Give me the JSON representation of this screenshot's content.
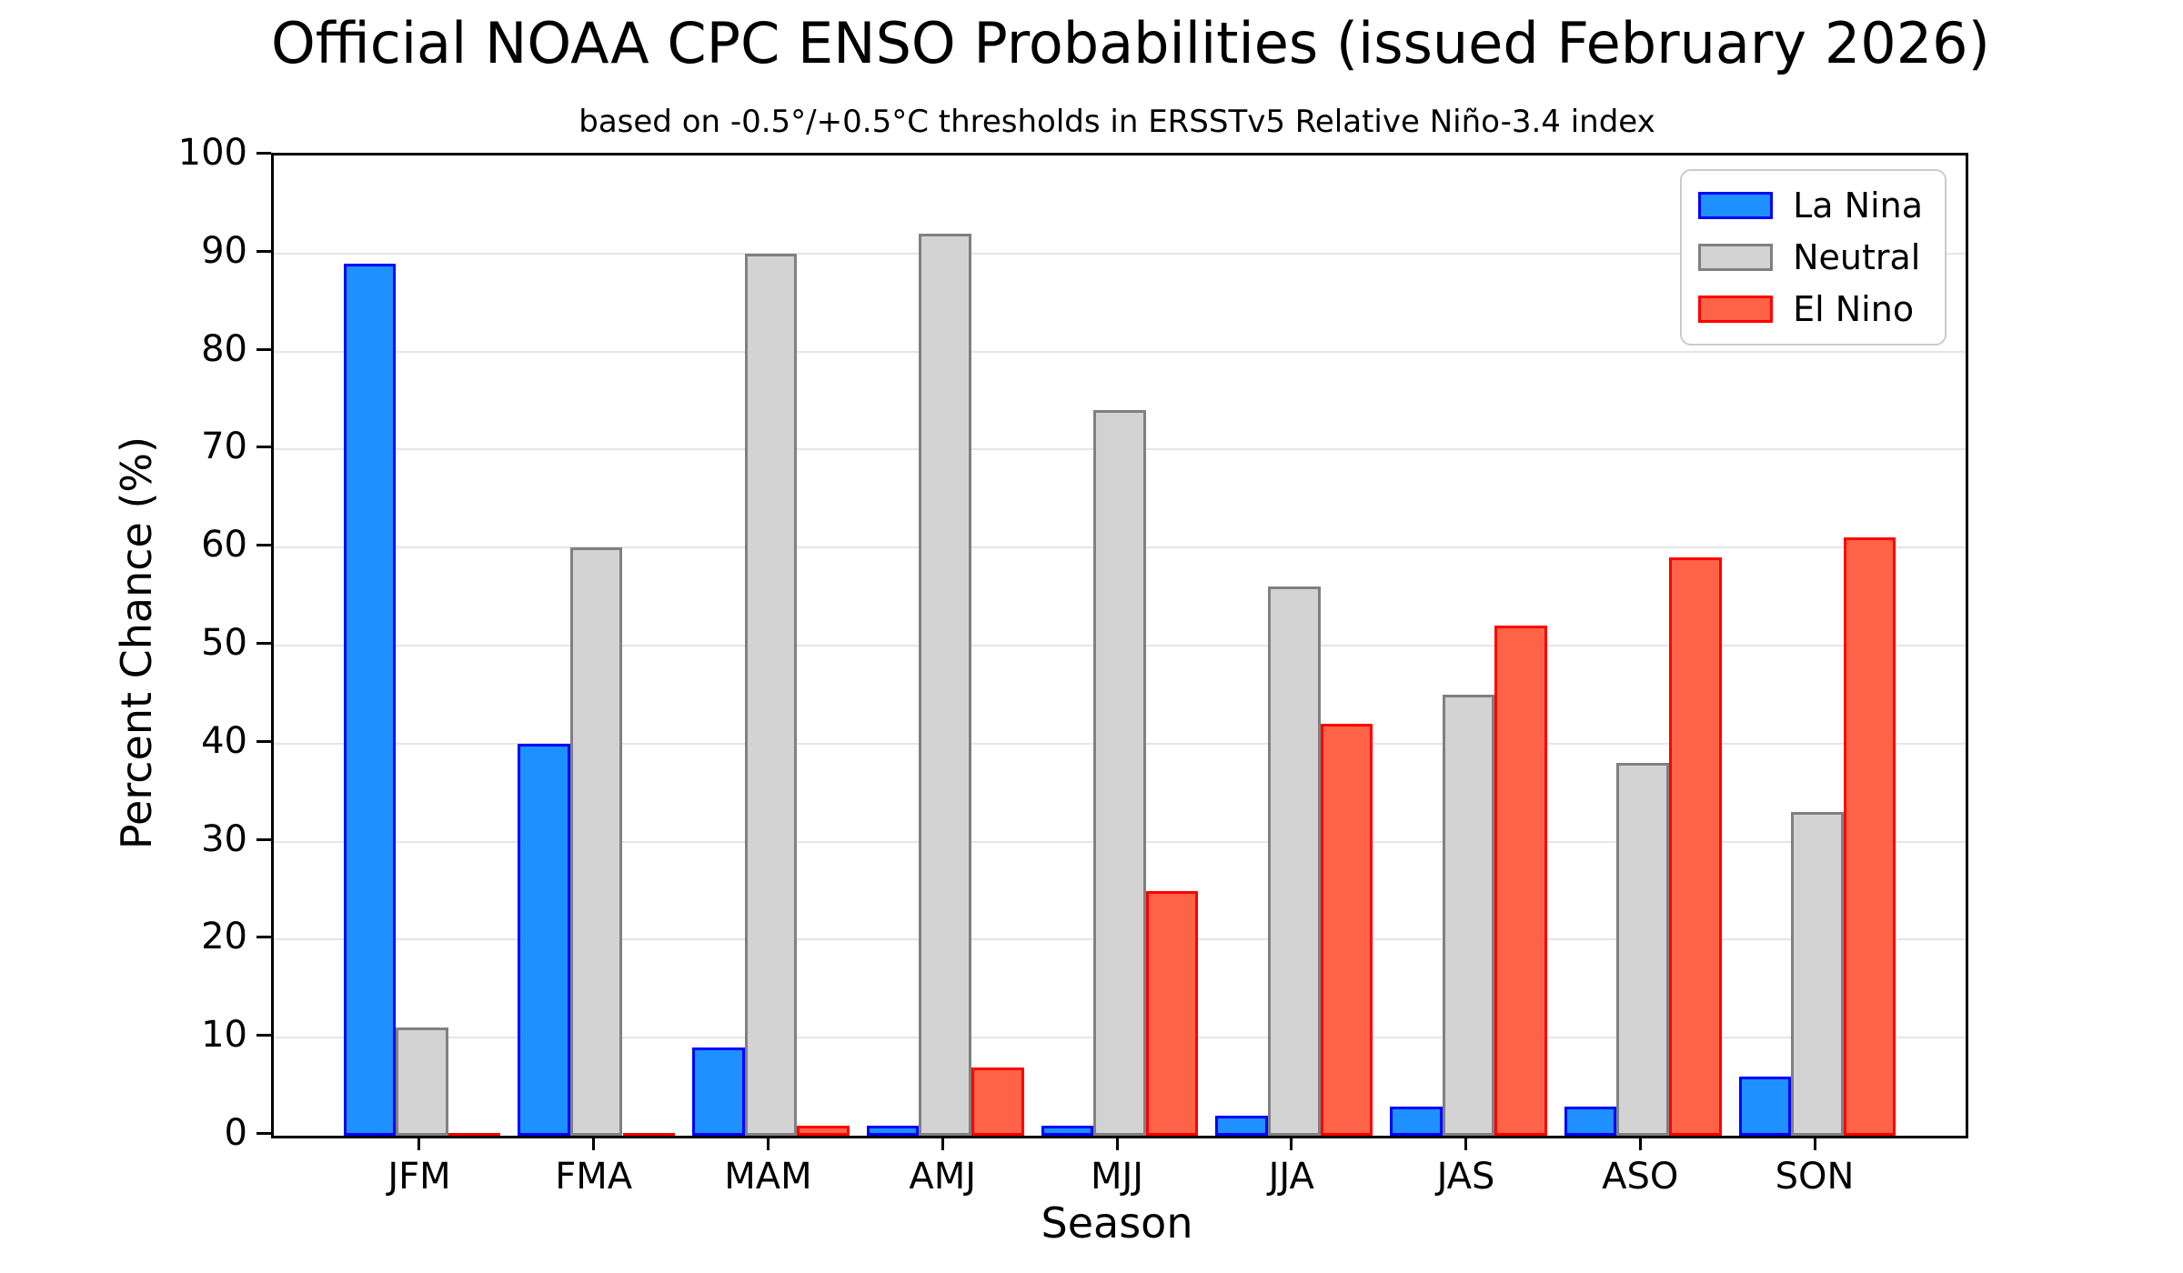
{
  "chart_data": {
    "type": "bar",
    "title": "Official NOAA CPC ENSO Probabilities (issued February 2026)",
    "subtitle": "based on -0.5°/+0.5°C thresholds in ERSSTv5 Relative Niño-3.4 index",
    "xlabel": "Season",
    "ylabel": "Percent Chance (%)",
    "ylim": [
      0,
      100
    ],
    "yticks": [
      0,
      10,
      20,
      30,
      40,
      50,
      60,
      70,
      80,
      90,
      100
    ],
    "grid": true,
    "grid_color": "#e5e5e5",
    "legend_position": "upper right",
    "categories": [
      "JFM",
      "FMA",
      "MAM",
      "AMJ",
      "MJJ",
      "JJA",
      "JAS",
      "ASO",
      "SON"
    ],
    "series": [
      {
        "name": "La Nina",
        "fill": "#1e90ff",
        "edge": "#0000ff",
        "values": [
          89,
          40,
          9,
          1,
          1,
          2,
          3,
          3,
          6
        ]
      },
      {
        "name": "Neutral",
        "fill": "#d3d3d3",
        "edge": "#808080",
        "values": [
          11,
          60,
          90,
          92,
          74,
          56,
          45,
          38,
          33
        ]
      },
      {
        "name": "El Nino",
        "fill": "#ff6347",
        "edge": "#ff0000",
        "values": [
          0,
          0,
          1,
          7,
          25,
          42,
          52,
          59,
          61
        ]
      }
    ]
  }
}
